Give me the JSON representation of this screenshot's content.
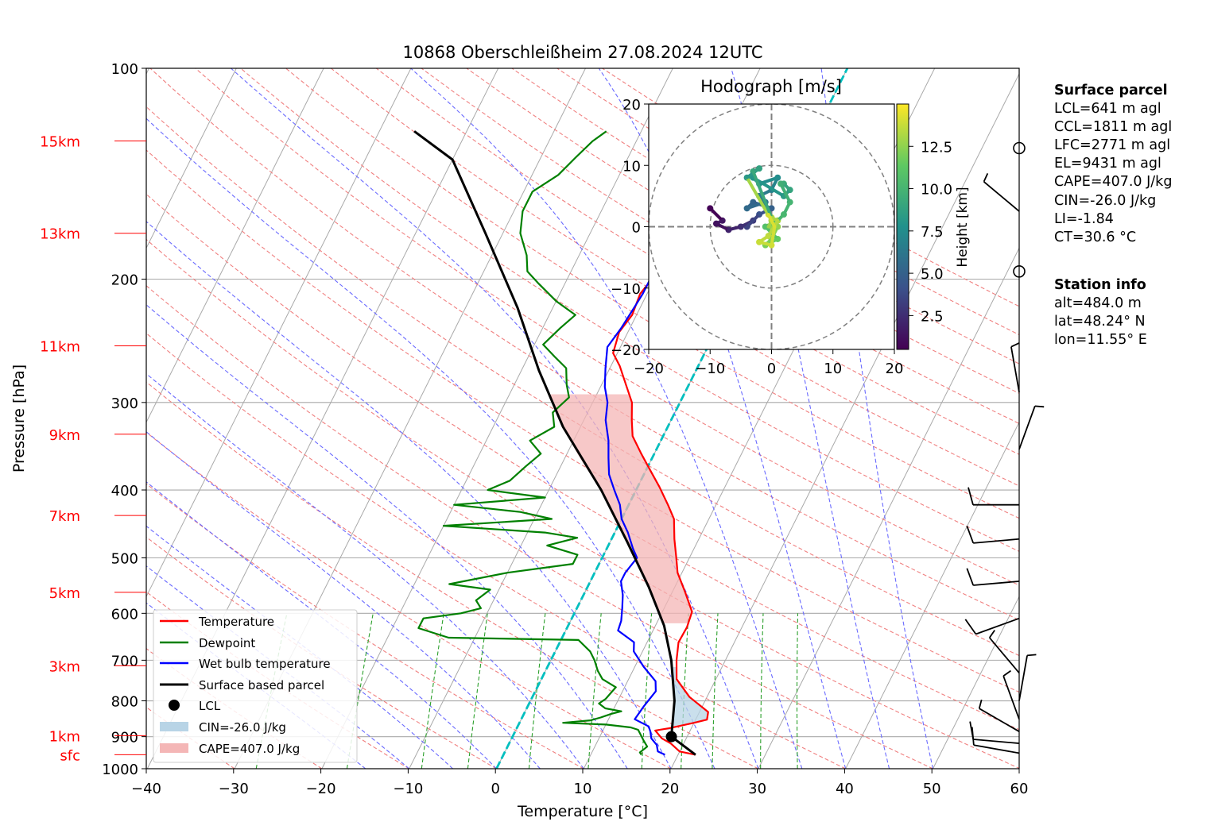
{
  "title": "10868 Oberschleißheim 27.08.2024 12UTC",
  "colors": {
    "temperature": "#ff0000",
    "dewpoint": "#008000",
    "wetbulb": "#0000ff",
    "parcel": "#000000",
    "isotherm": "#a9a9a9",
    "dry_adiabat": "#f08080",
    "moist_adiabat": "#6a6aff",
    "mixing_ratio": "#2ca02c",
    "zero_isotherm": "#00bfbf",
    "height_label": "#ff0000",
    "cin_fill": "#b8d4e6",
    "cape_fill": "#f4b6b6"
  },
  "legend": {
    "items": [
      "Temperature",
      "Dewpoint",
      "Wet bulb temperature",
      "Surface based parcel",
      "LCL",
      "CIN=-26.0 J/kg",
      "CAPE=407.0 J/kg"
    ]
  },
  "surface_parcel": {
    "header": "Surface parcel",
    "lines": [
      "LCL=641 m agl",
      "CCL=1811 m agl",
      "LFC=2771 m agl",
      "EL=9431 m agl",
      "CAPE=407.0 J/kg",
      "CIN=-26.0 J/kg",
      "LI=-1.84",
      "CT=30.6 °C"
    ]
  },
  "station_info": {
    "header": "Station info",
    "lines": [
      "alt=484.0 m",
      "lat=48.24° N",
      "lon=11.55° E"
    ]
  },
  "chart_data": [
    {
      "type": "line",
      "title": "10868 Oberschleißheim 27.08.2024 12UTC",
      "xlabel": "Temperature [°C]",
      "ylabel": "Pressure [hPa]",
      "xlim": [
        -40,
        60
      ],
      "ylim": [
        1000,
        100
      ],
      "y_scale": "log",
      "x_ticks": [
        -40,
        -30,
        -20,
        -10,
        0,
        10,
        20,
        30,
        40,
        50,
        60
      ],
      "x_tick_labels": [
        "−40",
        "−30",
        "−20",
        "−10",
        "0",
        "10",
        "20",
        "30",
        "40",
        "50",
        "60"
      ],
      "y_ticks": [
        1000,
        900,
        800,
        700,
        600,
        500,
        400,
        300,
        200,
        100
      ],
      "height_labels": [
        {
          "label": "sfc",
          "p": 955
        },
        {
          "label": "1km",
          "p": 897
        },
        {
          "label": "3km",
          "p": 713
        },
        {
          "label": "5km",
          "p": 560
        },
        {
          "label": "7km",
          "p": 435
        },
        {
          "label": "9km",
          "p": 333
        },
        {
          "label": "11km",
          "p": 249
        },
        {
          "label": "13km",
          "p": 172
        },
        {
          "label": "15km",
          "p": 127
        }
      ],
      "grid": true,
      "legend_position": "lower-left",
      "series": [
        {
          "name": "Temperature",
          "points": [
            [
              22,
              955
            ],
            [
              20,
              945
            ],
            [
              18.5,
              920
            ],
            [
              17.2,
              905
            ],
            [
              16,
              882
            ],
            [
              17.5,
              875
            ],
            [
              20,
              860
            ],
            [
              21.3,
              851
            ],
            [
              21,
              830
            ],
            [
              18,
              790
            ],
            [
              15.5,
              745
            ],
            [
              14.4,
              700
            ],
            [
              13.6,
              660
            ],
            [
              13.7,
              628
            ],
            [
              13.4,
              597
            ],
            [
              11.5,
              560
            ],
            [
              9.5,
              525
            ],
            [
              8.5,
              500
            ],
            [
              7.2,
              470
            ],
            [
              6,
              440
            ],
            [
              4.5,
              420
            ],
            [
              2.5,
              396
            ],
            [
              0.5,
              375
            ],
            [
              -1.5,
              355
            ],
            [
              -3.5,
              335
            ],
            [
              -4.5,
              318
            ],
            [
              -5.5,
              300
            ],
            [
              -7,
              285
            ],
            [
              -9,
              266
            ],
            [
              -10.5,
              255
            ],
            [
              -11,
              238
            ],
            [
              -10.5,
              225
            ],
            [
              -10.8,
              210
            ],
            [
              -10.2,
              198
            ],
            [
              -9,
              185
            ],
            [
              -6,
              178
            ],
            [
              -4.5,
              170
            ],
            [
              -3,
              165
            ],
            [
              -1,
              157
            ],
            [
              0.5,
              150
            ],
            [
              0.8,
              143
            ],
            [
              1.5,
              135
            ],
            [
              2,
              128
            ],
            [
              3.7,
              121
            ]
          ]
        },
        {
          "name": "Dewpoint",
          "points": [
            [
              15.8,
              955
            ],
            [
              15.5,
              948
            ],
            [
              16,
              930
            ],
            [
              15.3,
              913
            ],
            [
              14,
              880
            ],
            [
              13,
              873
            ],
            [
              10,
              865
            ],
            [
              5,
              860
            ],
            [
              8,
              853
            ],
            [
              9,
              845
            ],
            [
              10,
              835
            ],
            [
              11,
              828
            ],
            [
              9,
              820
            ],
            [
              8,
              807
            ],
            [
              8.5,
              795
            ],
            [
              9,
              765
            ],
            [
              7,
              745
            ],
            [
              6,
              725
            ],
            [
              5,
              700
            ],
            [
              4,
              680
            ],
            [
              2,
              655
            ],
            [
              -13,
              650
            ],
            [
              -17,
              630
            ],
            [
              -17,
              610
            ],
            [
              -13,
              600
            ],
            [
              -11,
              590
            ],
            [
              -12,
              575
            ],
            [
              -11,
              555
            ],
            [
              -16,
              545
            ],
            [
              -10,
              525
            ],
            [
              -3,
              510
            ],
            [
              -3,
              495
            ],
            [
              -7,
              480
            ],
            [
              -4,
              468
            ],
            [
              -8,
              460
            ],
            [
              -20,
              450
            ],
            [
              -8,
              440
            ],
            [
              -12,
              430
            ],
            [
              -20,
              420
            ],
            [
              -10,
              410
            ],
            [
              -17,
              400
            ],
            [
              -15,
              388
            ],
            [
              -14,
              370
            ],
            [
              -13,
              355
            ],
            [
              -15,
              340
            ],
            [
              -13,
              325
            ],
            [
              -14,
              310
            ],
            [
              -13,
              295
            ],
            [
              -14,
              283
            ],
            [
              -15,
              268
            ],
            [
              -17,
              258
            ],
            [
              -19,
              248
            ],
            [
              -18,
              235
            ],
            [
              -17,
              225
            ],
            [
              -20,
              215
            ],
            [
              -23,
              203
            ],
            [
              -25,
              195
            ],
            [
              -26,
              185
            ],
            [
              -28,
              172
            ],
            [
              -29,
              160
            ],
            [
              -29,
              150
            ],
            [
              -27,
              142
            ],
            [
              -26,
              134
            ],
            [
              -25,
              127
            ],
            [
              -24,
              123
            ]
          ]
        },
        {
          "name": "Wet bulb temperature",
          "points": [
            [
              18.5,
              955
            ],
            [
              17.5,
              945
            ],
            [
              17,
              925
            ],
            [
              16,
              905
            ],
            [
              15.5,
              885
            ],
            [
              15,
              870
            ],
            [
              13,
              850
            ],
            [
              13.3,
              815
            ],
            [
              13.8,
              775
            ],
            [
              13.2,
              750
            ],
            [
              11,
              715
            ],
            [
              9,
              680
            ],
            [
              8.5,
              660
            ],
            [
              6,
              635
            ],
            [
              5.8,
              615
            ],
            [
              5.2,
              590
            ],
            [
              4.5,
              565
            ],
            [
              3.5,
              540
            ],
            [
              3.5,
              525
            ],
            [
              4,
              500
            ],
            [
              3,
              485
            ],
            [
              1.5,
              460
            ],
            [
              0,
              440
            ],
            [
              -1,
              420
            ],
            [
              -2.5,
              400
            ],
            [
              -4,
              380
            ],
            [
              -5,
              360
            ],
            [
              -6,
              340
            ],
            [
              -7.5,
              318
            ],
            [
              -8.3,
              300
            ],
            [
              -9.5,
              285
            ],
            [
              -10.5,
              268
            ],
            [
              -11.5,
              250
            ],
            [
              -11,
              235
            ],
            [
              -10.7,
              220
            ],
            [
              -10.5,
              210
            ],
            [
              -10.5,
              198
            ],
            [
              -9,
              188
            ],
            [
              -7,
              178
            ],
            [
              -5,
              170
            ],
            [
              -3,
              163
            ],
            [
              -1.5,
              155
            ],
            [
              0,
              148
            ],
            [
              0.5,
              140
            ],
            [
              1.2,
              132
            ],
            [
              2.5,
              125
            ],
            [
              3.6,
              121
            ]
          ]
        },
        {
          "name": "Surface based parcel",
          "points": [
            [
              22,
              955
            ],
            [
              18.2,
              900
            ],
            [
              16.5,
              800
            ],
            [
              13.8,
              700
            ],
            [
              11,
              625
            ],
            [
              7,
              550
            ],
            [
              2,
              475
            ],
            [
              -4,
              400
            ],
            [
              -12,
              325
            ],
            [
              -18,
              270
            ],
            [
              -24,
              220
            ],
            [
              -32,
              172
            ],
            [
              -40,
              135
            ],
            [
              -46,
              123
            ]
          ]
        }
      ],
      "lcl": {
        "t": 18.2,
        "p": 900
      },
      "cin": "-26.0 J/kg",
      "cape": "407.0 J/kg",
      "wind_barbs": [
        {
          "p": 950,
          "dir": 280,
          "speed_kt": 10
        },
        {
          "p": 920,
          "dir": 275,
          "speed_kt": 10
        },
        {
          "p": 885,
          "dir": 300,
          "speed_kt": 5
        },
        {
          "p": 850,
          "dir": 340,
          "speed_kt": 5
        },
        {
          "p": 800,
          "dir": 10,
          "speed_kt": 5
        },
        {
          "p": 730,
          "dir": 320,
          "speed_kt": 5
        },
        {
          "p": 610,
          "dir": 250,
          "speed_kt": 10
        },
        {
          "p": 540,
          "dir": 265,
          "speed_kt": 10
        },
        {
          "p": 470,
          "dir": 265,
          "speed_kt": 10
        },
        {
          "p": 420,
          "dir": 270,
          "speed_kt": 10
        },
        {
          "p": 350,
          "dir": 20,
          "speed_kt": 5
        },
        {
          "p": 290,
          "dir": 350,
          "speed_kt": 5
        },
        {
          "p": 195,
          "dir": 0,
          "speed_kt": 0
        },
        {
          "p": 160,
          "dir": 310,
          "speed_kt": 5
        },
        {
          "p": 130,
          "dir": 20,
          "speed_kt": 0
        }
      ]
    },
    {
      "type": "scatter",
      "title": "Hodograph [m/s]",
      "xlim": [
        -20,
        20
      ],
      "ylim": [
        -20,
        20
      ],
      "x_ticks": [
        -20,
        -10,
        0,
        10,
        20
      ],
      "x_tick_labels": [
        "−20",
        "−10",
        "0",
        "10",
        "20"
      ],
      "y_ticks": [
        -20,
        -10,
        0,
        10,
        20
      ],
      "y_tick_labels": [
        "−20",
        "−10",
        "0",
        "10",
        "20"
      ],
      "colorbar_label": "Height [km]",
      "colorbar_ticks": [
        "2.5",
        "5.0",
        "7.5",
        "10.0",
        "12.5"
      ],
      "colorbar_range": [
        0.5,
        15
      ],
      "points": [
        [
          -10,
          3
        ],
        [
          -8,
          1
        ],
        [
          -9,
          0.5
        ],
        [
          -7,
          -0.5
        ],
        [
          -5,
          0
        ],
        [
          -3,
          1
        ],
        [
          -4,
          0
        ],
        [
          -2,
          2
        ],
        [
          0,
          3
        ],
        [
          -3,
          4
        ],
        [
          -4,
          3
        ],
        [
          -1,
          4
        ],
        [
          -2,
          5
        ],
        [
          0,
          6
        ],
        [
          1,
          8
        ],
        [
          -2,
          7
        ],
        [
          -3,
          8
        ],
        [
          2,
          5
        ],
        [
          3,
          6
        ],
        [
          2,
          7
        ],
        [
          1.5,
          7
        ],
        [
          3,
          4
        ],
        [
          2,
          2
        ],
        [
          1,
          1
        ],
        [
          -1,
          0
        ],
        [
          0,
          -1
        ],
        [
          1,
          -2
        ],
        [
          -1,
          -3
        ],
        [
          0,
          -2
        ],
        [
          1,
          0
        ],
        [
          -0.5,
          0
        ],
        [
          0,
          1
        ],
        [
          -4,
          8
        ],
        [
          -2,
          9.5
        ],
        [
          -3,
          9
        ],
        [
          0,
          1.5
        ],
        [
          1,
          1
        ],
        [
          -0.5,
          -1.5
        ],
        [
          -2,
          -2.5
        ],
        [
          0,
          -3
        ],
        [
          0.5,
          0
        ],
        [
          -0.5,
          2
        ]
      ],
      "heights_km": [
        0.6,
        1.5,
        1.2,
        2,
        2.6,
        3,
        3.5,
        4.2,
        5,
        5.2,
        5.5,
        6.2,
        6.5,
        7,
        7.5,
        7.8,
        8,
        8.5,
        9,
        9.5,
        9.7,
        10,
        10.2,
        10.5,
        10.8,
        11,
        11.5,
        12,
        12.3,
        12.6,
        12.8,
        13,
        8.2,
        8.8,
        9.2,
        13.2,
        13.4,
        13.6,
        13.8,
        14,
        14.2,
        14.4
      ]
    }
  ]
}
